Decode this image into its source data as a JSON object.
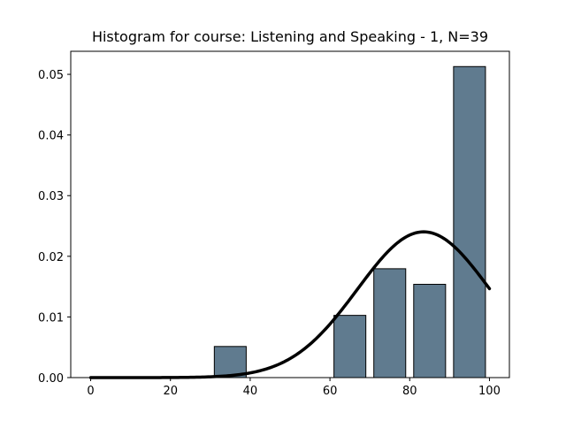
{
  "chart_data": {
    "type": "bar",
    "title": "Histogram for course: Listening and Speaking - 1,  N=39",
    "xlabel": "",
    "ylabel": "",
    "xlim": [
      -5,
      105
    ],
    "ylim": [
      0,
      0.0538
    ],
    "xticks": [
      0,
      20,
      40,
      60,
      80,
      100
    ],
    "yticks": [
      0.0,
      0.01,
      0.02,
      0.03,
      0.04,
      0.05
    ],
    "ytick_labels": [
      "0.00",
      "0.01",
      "0.02",
      "0.03",
      "0.04",
      "0.05"
    ],
    "bar_color": "#607b8f",
    "bar_edge_color": "#000000",
    "bins": [
      {
        "start": 30,
        "end": 40,
        "density": 0.00513
      },
      {
        "start": 60,
        "end": 70,
        "density": 0.01026
      },
      {
        "start": 70,
        "end": 80,
        "density": 0.01795
      },
      {
        "start": 80,
        "end": 90,
        "density": 0.01538
      },
      {
        "start": 90,
        "end": 100,
        "density": 0.05128
      }
    ],
    "curve": {
      "type": "normal_pdf",
      "mean": 83.5,
      "std": 16.6,
      "x_range": [
        0,
        100
      ],
      "color": "#000000"
    },
    "grid": false,
    "legend": false
  }
}
